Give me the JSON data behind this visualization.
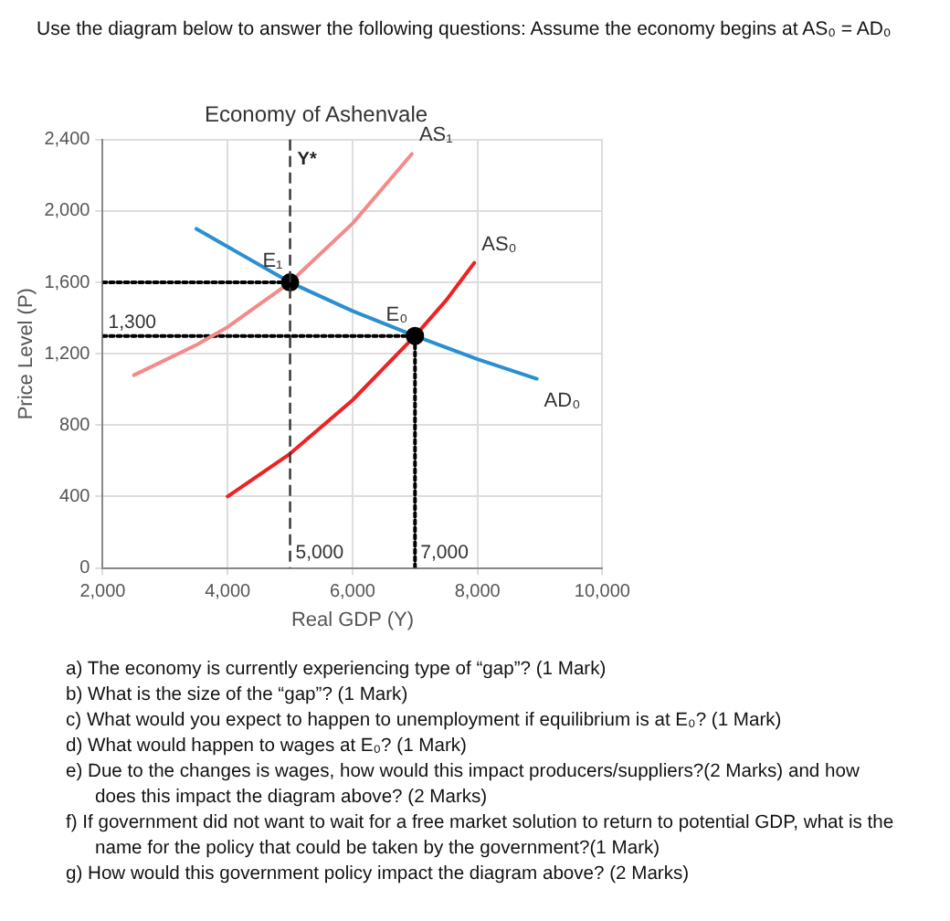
{
  "chart_data": {
    "type": "line",
    "title": "Economy of Ashenvale",
    "xlabel": "Real GDP (Y)",
    "ylabel": "Price Level (P)",
    "xlim": [
      2000,
      10000
    ],
    "xticks": [
      {
        "value": 2000,
        "label": "2,000"
      },
      {
        "value": 4000,
        "label": "4,000"
      },
      {
        "value": 6000,
        "label": "6,000"
      },
      {
        "value": 8000,
        "label": "8,000"
      },
      {
        "value": 10000,
        "label": "10,000"
      }
    ],
    "ylim": [
      0,
      2400
    ],
    "yticks": [
      0,
      400,
      800,
      {
        "value": 1200,
        "label": "1,200"
      },
      {
        "value": 1600,
        "label": "1,600"
      },
      {
        "value": 2000,
        "label": "2,000"
      },
      {
        "value": 2400,
        "label": "2,400"
      }
    ],
    "grid": true,
    "legend": false,
    "marker": "none",
    "series": [
      {
        "name": "AD₀",
        "color": "#2a8fd0",
        "x": [
          3500,
          4000,
          5000,
          6000,
          7000,
          8000,
          8950
        ],
        "values": [
          1900,
          1800,
          1600,
          1440,
          1300,
          1170,
          1060
        ]
      },
      {
        "name": "AS₀",
        "color": "#ee2222",
        "x": [
          4000,
          5000,
          6000,
          7000,
          7500,
          7950
        ],
        "values": [
          400,
          640,
          940,
          1300,
          1500,
          1710
        ]
      },
      {
        "name": "AS₁",
        "color": "#f48a8a",
        "x": [
          2500,
          3500,
          4000,
          5000,
          6000,
          6950
        ],
        "values": [
          1080,
          1250,
          1350,
          1600,
          1930,
          2320
        ]
      },
      {
        "color": "#000000",
        "line_style": "dotted",
        "x": [
          2000,
          5000
        ],
        "values": [
          1600,
          1600
        ]
      },
      {
        "color": "#000000",
        "line_style": "dotted",
        "x": [
          2000,
          7000
        ],
        "values": [
          1300,
          1300
        ]
      },
      {
        "color": "#000000",
        "line_style": "dotted",
        "x": [
          7000,
          7000
        ],
        "values": [
          0,
          1300
        ]
      },
      {
        "name": "E₁",
        "type": "scatter",
        "marker": "circle",
        "color": "#000000",
        "x": [
          5000
        ],
        "values": [
          1600
        ]
      },
      {
        "name": "E₀",
        "type": "scatter",
        "marker": "circle",
        "color": "#000000",
        "x": [
          7000
        ],
        "values": [
          1300
        ]
      }
    ],
    "ref_lines": [
      {
        "axis": "x",
        "value": 5000,
        "label": "Y*",
        "color": "#333333",
        "line_style": "dashed"
      }
    ],
    "annotations": [
      "Use the diagram below to answer the following questions: Assume the economy begins at AS₀ = AD₀",
      {
        "text": "1,300",
        "x": 2000,
        "y": 1300
      },
      {
        "text": "5,000",
        "x": 5000,
        "y": 0
      },
      {
        "text": "7,000",
        "x": 7000,
        "y": 0
      },
      "a) The economy is currently experiencing type of “gap”? (1 Mark)",
      "b) What is the size of the “gap”? (1 Mark)",
      "c) What would you expect to happen to unemployment if equilibrium is at E₀? (1 Mark)",
      "d) What would happen to wages at E₀? (1 Mark)",
      "e) Due to the changes is wages, how would this impact producers/suppliers?(2 Marks) and how does this impact the diagram above? (2 Marks)",
      "f) If government did not want to wait for a free market solution to return to potential GDP, what is the name for the policy that could be taken by the government?(1 Mark)",
      "g) How would this government policy impact the diagram above? (2 Marks)"
    ]
  }
}
